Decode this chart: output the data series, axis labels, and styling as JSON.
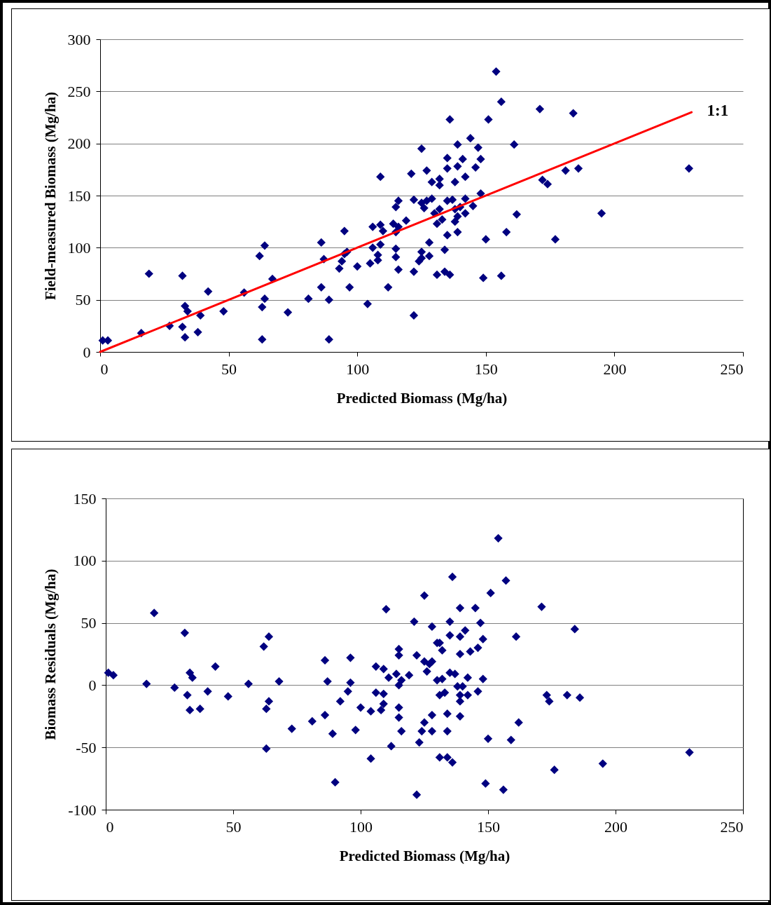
{
  "chart_data": [
    {
      "type": "scatter",
      "xlabel": "Predicted Biomass (Mg/ha)",
      "ylabel": "Field-measured Biomass (Mg/ha)",
      "xlim": [
        0,
        250
      ],
      "xticks": [
        0,
        50,
        100,
        150,
        200,
        250
      ],
      "ylim": [
        0,
        300
      ],
      "yticks": [
        0,
        50,
        100,
        150,
        200,
        250,
        300
      ],
      "grid": "y",
      "marker": "diamond",
      "series": [
        {
          "color": "#000080",
          "x": [
            1,
            3,
            16,
            19,
            27,
            32,
            32,
            33,
            34,
            33,
            38,
            39,
            42,
            48,
            56,
            62,
            64,
            64,
            63,
            63,
            67,
            73,
            81,
            86,
            86,
            87,
            89,
            89,
            93,
            94,
            95,
            96,
            97,
            95,
            100,
            105,
            104,
            106,
            106,
            108,
            108,
            109,
            109,
            109,
            110,
            112,
            114,
            116,
            115,
            116,
            115,
            115,
            115,
            116,
            119,
            121,
            122,
            122,
            122,
            124,
            125,
            125,
            125,
            125,
            126,
            127,
            127,
            128,
            128,
            129,
            129,
            130,
            132,
            131,
            133,
            131,
            132,
            132,
            134,
            134,
            136,
            135,
            135,
            135,
            135,
            136,
            137,
            138,
            139,
            138,
            139,
            139,
            139,
            138,
            140,
            141,
            142,
            142,
            142,
            144,
            145,
            147,
            146,
            148,
            148,
            149,
            150,
            151,
            154,
            156,
            156,
            158,
            161,
            162,
            171,
            172,
            174,
            177,
            181,
            184,
            186,
            195,
            229
          ],
          "values": [
            11,
            11,
            18,
            75,
            25,
            73,
            24,
            44,
            39,
            14,
            19,
            35,
            58,
            39,
            57,
            92,
            102,
            51,
            43,
            12,
            70,
            38,
            51,
            105,
            62,
            89,
            50,
            12,
            80,
            87,
            116,
            96,
            62,
            94,
            82,
            85,
            46,
            120,
            100,
            93,
            88,
            103,
            122,
            168,
            116,
            62,
            123,
            120,
            115,
            145,
            139,
            99,
            91,
            79,
            126,
            171,
            35,
            146,
            77,
            87,
            90,
            96,
            195,
            143,
            138,
            145,
            174,
            92,
            105,
            147,
            163,
            133,
            137,
            123,
            127,
            74,
            166,
            160,
            98,
            77,
            74,
            112,
            186,
            176,
            145,
            223,
            146,
            137,
            130,
            125,
            115,
            199,
            178,
            163,
            139,
            185,
            147,
            133,
            168,
            205,
            140,
            196,
            177,
            185,
            152,
            71,
            108,
            223,
            269,
            73,
            240,
            115,
            199,
            132,
            233,
            165,
            161,
            108,
            174,
            229,
            176,
            133,
            176
          ]
        },
        {
          "type": "line",
          "name": "1:1",
          "marker": "none",
          "color": "#ff0000",
          "x": [
            0,
            230
          ],
          "values": [
            0,
            230
          ]
        }
      ]
    },
    {
      "type": "scatter",
      "xlabel": "Predicted Biomass (Mg/ha)",
      "ylabel": "Biomass Residuals (Mg/ha)",
      "xlim": [
        0,
        250
      ],
      "xticks": [
        0,
        50,
        100,
        150,
        200,
        250
      ],
      "ylim": [
        -100,
        150
      ],
      "yticks": [
        -100,
        -50,
        0,
        50,
        100,
        150
      ],
      "grid": "y",
      "marker": "diamond",
      "series": [
        {
          "color": "#000080",
          "x": [
            1,
            3,
            16,
            19,
            27,
            31,
            33,
            34,
            32,
            33,
            37,
            40,
            43,
            48,
            56,
            62,
            64,
            64,
            63,
            63,
            68,
            73,
            81,
            86,
            86,
            87,
            89,
            90,
            92,
            95,
            96,
            96,
            98,
            100,
            104,
            104,
            106,
            106,
            109,
            109,
            108,
            109,
            110,
            111,
            112,
            114,
            115,
            116,
            115,
            115,
            115,
            115,
            116,
            119,
            122,
            121,
            122,
            123,
            124,
            125,
            125,
            125,
            126,
            127,
            128,
            128,
            128,
            128,
            130,
            131,
            132,
            130,
            132,
            131,
            133,
            131,
            134,
            136,
            134,
            134,
            135,
            137,
            135,
            135,
            136,
            139,
            139,
            139,
            138,
            140,
            139,
            139,
            139,
            142,
            141,
            143,
            142,
            145,
            146,
            147,
            148,
            148,
            146,
            150,
            149,
            151,
            154,
            157,
            156,
            159,
            161,
            162,
            171,
            173,
            174,
            181,
            184,
            186,
            176,
            195,
            229
          ],
          "values": [
            10,
            8,
            1,
            58,
            -2,
            42,
            10,
            6,
            -8,
            -20,
            -19,
            -5,
            15,
            -9,
            1,
            31,
            39,
            -13,
            -19,
            -51,
            3,
            -35,
            -29,
            -24,
            20,
            3,
            -39,
            -78,
            -13,
            -5,
            22,
            2,
            -36,
            -18,
            -21,
            -59,
            -6,
            15,
            -7,
            -15,
            -20,
            13,
            61,
            6,
            -49,
            9,
            0,
            4,
            29,
            24,
            -18,
            -26,
            -37,
            8,
            24,
            51,
            -88,
            -46,
            -37,
            -30,
            72,
            19,
            11,
            17,
            19,
            -37,
            47,
            -24,
            34,
            34,
            28,
            4,
            5,
            -8,
            -6,
            -58,
            -58,
            -62,
            -23,
            -37,
            10,
            9,
            51,
            40,
            87,
            39,
            62,
            25,
            -1,
            -1,
            -8,
            -13,
            -25,
            -8,
            44,
            27,
            6,
            62,
            30,
            50,
            37,
            5,
            -5,
            -43,
            -79,
            74,
            118,
            84,
            -84,
            -44,
            39,
            -30,
            63,
            -8,
            -13,
            -8,
            45,
            -10,
            -68,
            -63,
            -54
          ]
        }
      ]
    }
  ]
}
